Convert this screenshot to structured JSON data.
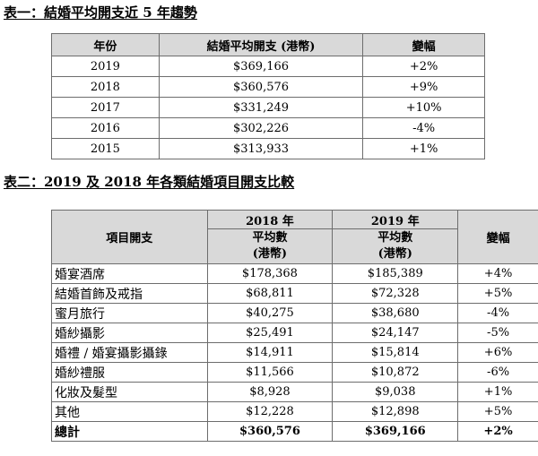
{
  "table1": {
    "title": "表一：結婚平均開支近 5 年趨勢",
    "headers": [
      "年份",
      "結婚平均開支 (港幣)",
      "變幅"
    ],
    "rows": [
      [
        "2019",
        "$369,166",
        "+2%"
      ],
      [
        "2018",
        "$360,576",
        "+9%"
      ],
      [
        "2017",
        "$331,249",
        "+10%"
      ],
      [
        "2016",
        "$302,226",
        "-4%"
      ],
      [
        "2015",
        "$313,933",
        "+1%"
      ]
    ]
  },
  "table2": {
    "title": "表二：2019 及 2018 年各類結婚項目開支比較",
    "headers": {
      "item": "項目開支",
      "y2018": "2018 年",
      "y2019": "2019 年",
      "avg_label": "平均數",
      "unit_label": "(港幣)",
      "change": "變幅"
    },
    "rows": [
      [
        "婚宴酒席",
        "$178,368",
        "$185,389",
        "+4%"
      ],
      [
        "結婚首飾及戒指",
        "$68,811",
        "$72,328",
        "+5%"
      ],
      [
        "蜜月旅行",
        "$40,275",
        "$38,680",
        "-4%"
      ],
      [
        "婚紗攝影",
        "$25,491",
        "$24,147",
        "-5%"
      ],
      [
        "婚禮 / 婚宴攝影攝錄",
        "$14,911",
        "$15,814",
        "+6%"
      ],
      [
        "婚紗禮服",
        "$11,566",
        "$10,872",
        "-6%"
      ],
      [
        "化妝及髮型",
        "$8,928",
        "$9,038",
        "+1%"
      ],
      [
        "其他",
        "$12,228",
        "$12,898",
        "+5%"
      ]
    ],
    "total": [
      "總計",
      "$360,576",
      "$369,166",
      "+2%"
    ]
  }
}
